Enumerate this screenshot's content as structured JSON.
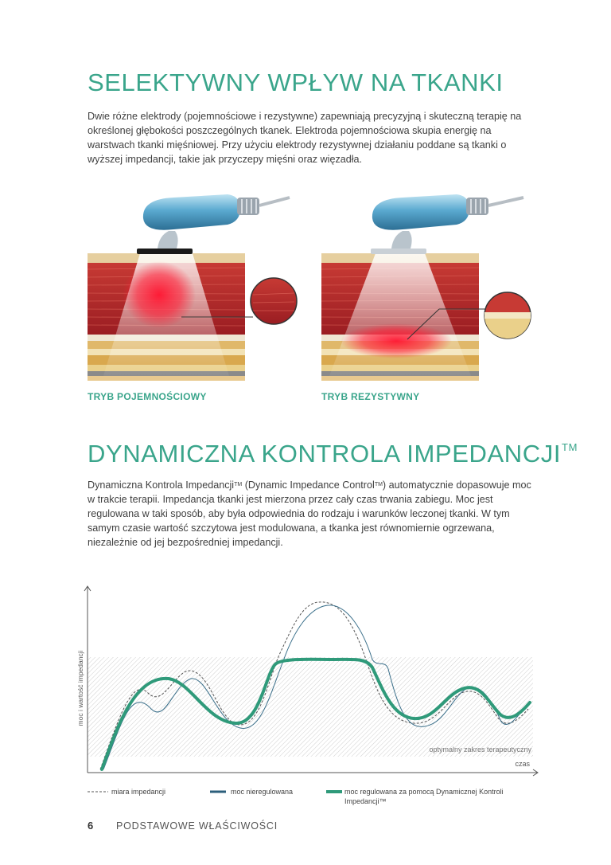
{
  "section1": {
    "title": "SELEKTYWNY WPŁYW NA TKANKI",
    "paragraph": "Dwie różne elektrody (pojemnościowe i rezystywne) zapewniają precyzyjną i skuteczną terapię na określonej głębokości poszczególnych tkanek. Elektroda pojemnościowa skupia energię na warstwach tkanki mięśniowej. Przy użyciu elektrody rezystywnej działaniu poddane są tkanki o wyższej impedancji, takie jak przyczepy mięśni oraz więzadła."
  },
  "illustrations": {
    "left_caption": "TRYB POJEMNOŚCIOWY",
    "right_caption": "TRYB REZYSTYWNY"
  },
  "section2": {
    "title": "DYNAMICZNA KONTROLA IMPEDANCJI",
    "title_sup": "TM",
    "para_part1": "Dynamiczna Kontrola Impedancji",
    "para_sup1": "TM",
    "para_part2": " (Dynamic Impedance Control",
    "para_sup2": "TM",
    "para_part3": ") automatycznie dopasowuje moc w trakcie terapii. Impedancja tkanki jest mierzona przez cały czas trwania zabiegu. Moc jest regulowana w taki sposób, aby była odpowiednia do rodzaju i warunków leczonej tkanki. W tym samym czasie wartość szczytowa jest modulowana, a tkanka jest równomiernie ogrzewana, niezależnie od jej bezpośredniej impedancji."
  },
  "chart_data": {
    "type": "line",
    "ylabel": "moc i wartość impedancji",
    "xlabel": "czas",
    "band_label": "optymalny zakres terapeutyczny",
    "series": [
      {
        "name": "miara impedancji",
        "style": "dashed",
        "color": "#555555"
      },
      {
        "name": "moc nieregulowana",
        "style": "thin",
        "color": "#3a6f8a"
      },
      {
        "name": "moc regulowana za pomocą Dynamicznej Kontroli Impedancji™",
        "style": "thick",
        "color": "#2f9a7a"
      }
    ]
  },
  "legend": {
    "impedance": "miara impedancji",
    "unregulated": "moc nieregulowana",
    "regulated_line1": "moc regulowana za pomocą Dynamicznej Kontroli",
    "regulated_line2": "Impedancji™"
  },
  "footer": {
    "page_number": "6",
    "section_name": "PODSTAWOWE WŁAŚCIWOŚCI"
  },
  "colors": {
    "accent": "#3aa58b",
    "muscle": "#b3262a",
    "heat": "#ee1c2e"
  }
}
